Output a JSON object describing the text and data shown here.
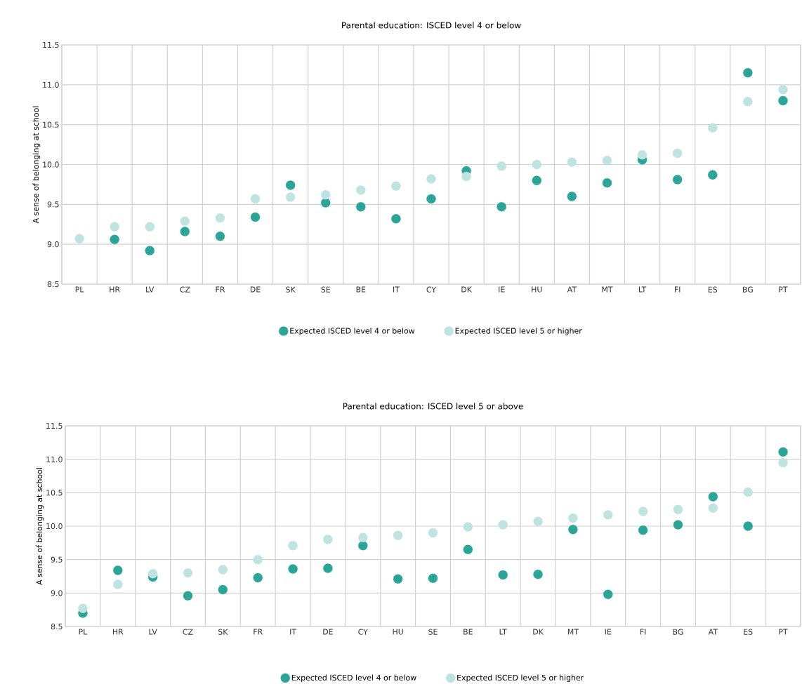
{
  "chart_data": [
    {
      "type": "scatter",
      "title": "Parental education: ISCED level 4 or below",
      "ylabel": "A sense of belonging at school",
      "categories": [
        "PL",
        "HR",
        "LV",
        "CZ",
        "FR",
        "DE",
        "SK",
        "SE",
        "BE",
        "IT",
        "CY",
        "DK",
        "IE",
        "HU",
        "AT",
        "MT",
        "LT",
        "FI",
        "ES",
        "BG",
        "PT"
      ],
      "series": [
        {
          "name": "Expected ISCED level 4 or below",
          "color": "#2aa597",
          "values": [
            null,
            9.06,
            8.92,
            9.16,
            9.1,
            9.34,
            9.74,
            9.52,
            9.47,
            9.32,
            9.57,
            9.92,
            9.47,
            9.8,
            9.6,
            9.77,
            10.06,
            9.81,
            9.87,
            11.15,
            10.8
          ]
        },
        {
          "name": "Expected ISCED level 5 or higher",
          "color": "#bfe3e0",
          "values": [
            9.07,
            9.22,
            9.22,
            9.29,
            9.33,
            9.57,
            9.59,
            9.62,
            9.68,
            9.73,
            9.82,
            9.85,
            9.98,
            10.0,
            10.03,
            10.05,
            10.12,
            10.14,
            10.46,
            10.79,
            10.94
          ]
        }
      ],
      "ylim": [
        8.5,
        11.5
      ],
      "yticks": [
        8.5,
        {
          "value": 9,
          "label": "9.0"
        },
        9.5,
        {
          "value": 10,
          "label": "10.0"
        },
        10.5,
        {
          "value": 11,
          "label": "11.0"
        },
        11.5
      ],
      "grid": true,
      "legend": "bottom",
      "marker": "circle"
    },
    {
      "type": "scatter",
      "title": "Parental education: ISCED level 5 or above",
      "ylabel": "A sense of belonging at school",
      "categories": [
        "PL",
        "HR",
        "LV",
        "CZ",
        "SK",
        "FR",
        "IT",
        "DE",
        "CY",
        "HU",
        "SE",
        "BE",
        "LT",
        "DK",
        "MT",
        "IE",
        "FI",
        "BG",
        "AT",
        "ES",
        "PT"
      ],
      "series": [
        {
          "name": "Expected ISCED level 4 or below",
          "color": "#2aa597",
          "values": [
            8.7,
            9.34,
            9.24,
            8.96,
            9.05,
            9.23,
            9.36,
            9.37,
            9.71,
            9.21,
            9.22,
            9.65,
            9.27,
            9.28,
            9.95,
            8.98,
            9.94,
            10.02,
            10.44,
            10.0,
            11.11
          ]
        },
        {
          "name": "Expected ISCED level 5 or higher",
          "color": "#bfe3e0",
          "values": [
            8.77,
            9.13,
            9.29,
            9.3,
            9.35,
            9.5,
            9.71,
            9.8,
            9.83,
            9.86,
            9.9,
            9.99,
            10.02,
            10.07,
            10.12,
            10.17,
            10.22,
            10.25,
            10.27,
            10.51,
            10.95
          ]
        }
      ],
      "ylim": [
        8.5,
        11.5
      ],
      "yticks": [
        8.5,
        {
          "value": 9,
          "label": "9.0"
        },
        9.5,
        {
          "value": 10,
          "label": "10.0"
        },
        10.5,
        {
          "value": 11,
          "label": "11.0"
        },
        11.5
      ],
      "grid": true,
      "legend": "bottom",
      "marker": "circle"
    }
  ]
}
